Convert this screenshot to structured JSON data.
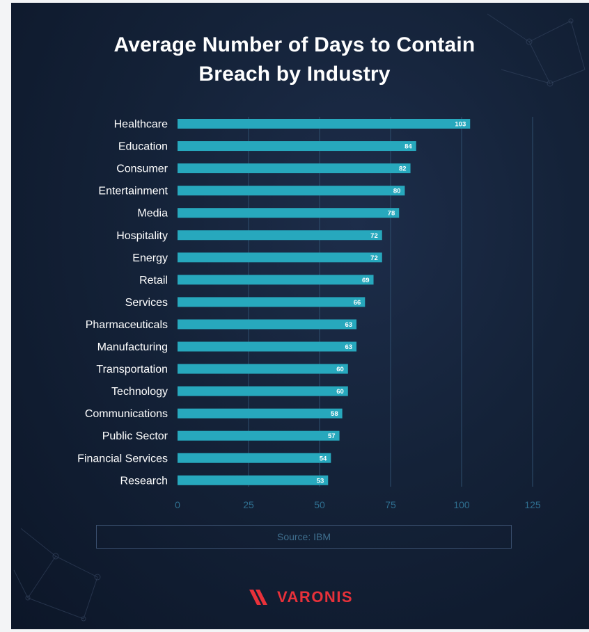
{
  "title_line1": "Average Number of Days to Contain",
  "title_line2": "Breach by Industry",
  "source": "Source: IBM",
  "brand": "VARONIS",
  "colors": {
    "bar": "#27a8bd",
    "grid": "#2f4f6e",
    "tick": "#2f6f90",
    "label": "#ffffff",
    "brand": "#e8313a"
  },
  "chart_data": {
    "type": "bar",
    "orientation": "horizontal",
    "title": "Average Number of Days to Contain Breach by Industry",
    "categories": [
      "Healthcare",
      "Education",
      "Consumer",
      "Entertainment",
      "Media",
      "Hospitality",
      "Energy",
      "Retail",
      "Services",
      "Pharmaceuticals",
      "Manufacturing",
      "Transportation",
      "Technology",
      "Communications",
      "Public Sector",
      "Financial Services",
      "Research"
    ],
    "values": [
      103,
      84,
      82,
      80,
      78,
      72,
      72,
      69,
      66,
      63,
      63,
      60,
      60,
      58,
      57,
      54,
      53
    ],
    "xlim": [
      0,
      125
    ],
    "xticks": [
      0,
      25,
      50,
      75,
      100,
      125
    ],
    "grid": true,
    "data_labels": true
  }
}
